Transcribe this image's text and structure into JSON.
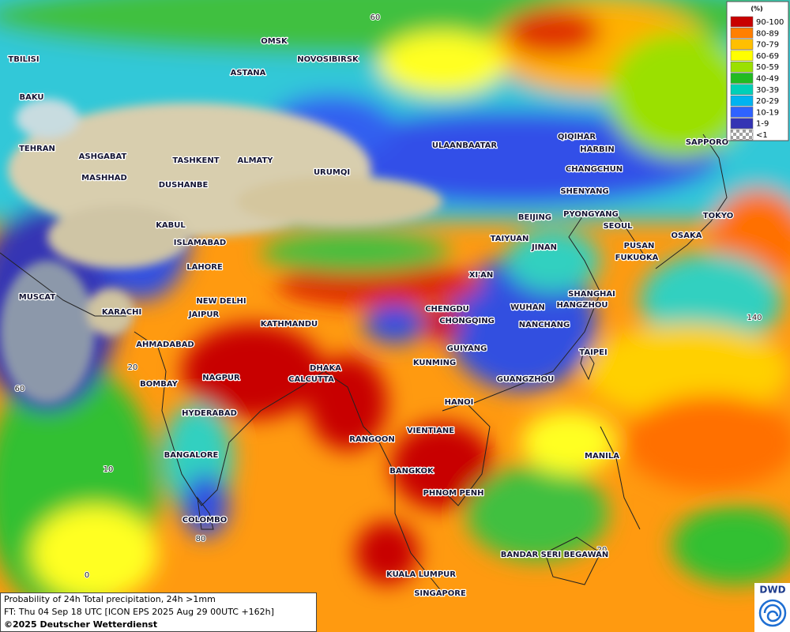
{
  "map": {
    "cities": [
      "TBILISI",
      "BAKU",
      "OMSK",
      "NOVOSIBIRSK",
      "ASTANA",
      "TEHRAN",
      "ASHGABAT",
      "MASHHAD",
      "TASHKENT",
      "ALMATY",
      "DUSHANBE",
      "URUMQI",
      "ULAANBAATAR",
      "QIQIHAR",
      "HARBIN",
      "CHANGCHUN",
      "SHENYANG",
      "BEIJING",
      "PYONGYANG",
      "SEOUL",
      "TOKYO",
      "SAPPORO",
      "OSAKA",
      "PUSAN",
      "FUKUOKA",
      "TAIYUAN",
      "JINAN",
      "KABUL",
      "ISLAMABAD",
      "LAHORE",
      "XI'AN",
      "MUSCAT",
      "KARACHI",
      "NEW DELHI",
      "JAIPUR",
      "KATHMANDU",
      "CHENGDU",
      "CHONGQING",
      "WUHAN",
      "SHANGHAI",
      "HANGZHOU",
      "NANCHANG",
      "AHMADABAD",
      "GUIYANG",
      "TAIPEI",
      "KUNMING",
      "DHAKA",
      "CALCUTTA",
      "NAGPUR",
      "BOMBAY",
      "GUANGZHOU",
      "HANOI",
      "HYDERABAD",
      "RANGOON",
      "VIENTIANE",
      "MANILA",
      "BANGALORE",
      "BANGKOK",
      "PHNOM PENH",
      "COLOMBO",
      "BANDAR SERI BEGAWAN",
      "KUALA LUMPUR",
      "SINGAPORE"
    ],
    "grid_labels": [
      60,
      20,
      60,
      10,
      80,
      0,
      140,
      20
    ]
  },
  "legend": {
    "title": "(%)",
    "entries": [
      {
        "label": "90-100",
        "color": "#c80000"
      },
      {
        "label": "80-89",
        "color": "#ff7f00"
      },
      {
        "label": "70-79",
        "color": "#ffbf00"
      },
      {
        "label": "60-69",
        "color": "#ffff00"
      },
      {
        "label": "50-59",
        "color": "#9be000"
      },
      {
        "label": "40-49",
        "color": "#22bb22"
      },
      {
        "label": "30-39",
        "color": "#00d0b8"
      },
      {
        "label": "20-29",
        "color": "#00b4f0"
      },
      {
        "label": "10-19",
        "color": "#2f63ff"
      },
      {
        "label": "1-9",
        "color": "#3434b4"
      },
      {
        "label": "<1",
        "color": "#b0b0b0"
      }
    ]
  },
  "info": {
    "line1": "Probability of 24h Total precipitation, 24h >1mm",
    "line2": "FT: Thu 04 Sep 18 UTC [ICON EPS 2025 Aug 29 00UTC +162h]",
    "line3": "©2025 Deutscher Wetterdienst"
  },
  "logo": "DWD"
}
